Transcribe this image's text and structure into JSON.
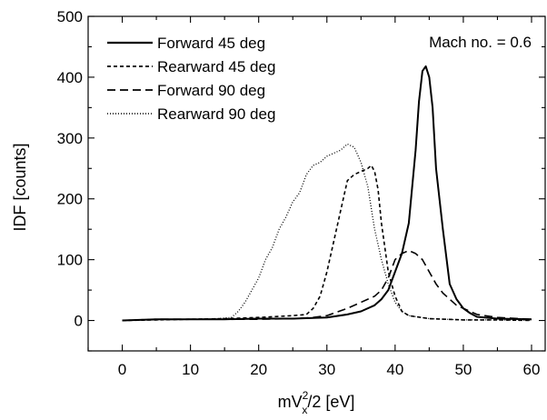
{
  "chart_data": {
    "type": "line",
    "title": "",
    "xlabel": "mV_x^2/2 [eV]",
    "xlabel_parts": {
      "base": "mV",
      "sub": "x",
      "sup": "2",
      "tail": "/2 [eV]"
    },
    "ylabel": "IDF [counts]",
    "xlim": [
      -5,
      62
    ],
    "ylim": [
      -50,
      500
    ],
    "xticks": [
      0,
      10,
      20,
      30,
      40,
      50,
      60
    ],
    "yticks": [
      0,
      100,
      200,
      300,
      400,
      500
    ],
    "grid": false,
    "legend_position": "top-left",
    "annotation": "Mach no. = 0.6",
    "series": [
      {
        "name": "Forward 45 deg",
        "style": "solid",
        "color": "#000000",
        "points": [
          [
            0,
            0
          ],
          [
            5,
            2
          ],
          [
            10,
            2
          ],
          [
            15,
            2
          ],
          [
            20,
            3
          ],
          [
            25,
            3
          ],
          [
            30,
            5
          ],
          [
            33,
            10
          ],
          [
            35,
            15
          ],
          [
            37,
            25
          ],
          [
            38,
            35
          ],
          [
            39,
            50
          ],
          [
            40,
            80
          ],
          [
            41,
            110
          ],
          [
            42,
            160
          ],
          [
            43,
            280
          ],
          [
            43.5,
            360
          ],
          [
            44,
            410
          ],
          [
            44.5,
            418
          ],
          [
            45,
            400
          ],
          [
            45.5,
            350
          ],
          [
            46,
            250
          ],
          [
            47,
            150
          ],
          [
            48,
            60
          ],
          [
            49,
            35
          ],
          [
            50,
            20
          ],
          [
            51,
            12
          ],
          [
            52,
            6
          ],
          [
            55,
            3
          ],
          [
            60,
            2
          ]
        ]
      },
      {
        "name": "Rearward 45 deg",
        "style": "short-dash",
        "color": "#000000",
        "points": [
          [
            0,
            0
          ],
          [
            5,
            1
          ],
          [
            10,
            2
          ],
          [
            15,
            3
          ],
          [
            20,
            5
          ],
          [
            25,
            8
          ],
          [
            27,
            10
          ],
          [
            28,
            20
          ],
          [
            29,
            40
          ],
          [
            30,
            80
          ],
          [
            31,
            130
          ],
          [
            32,
            180
          ],
          [
            33,
            230
          ],
          [
            34,
            240
          ],
          [
            35,
            245
          ],
          [
            36,
            250
          ],
          [
            36.5,
            255
          ],
          [
            37,
            245
          ],
          [
            37.5,
            215
          ],
          [
            38,
            160
          ],
          [
            39,
            80
          ],
          [
            40,
            40
          ],
          [
            41,
            15
          ],
          [
            42,
            8
          ],
          [
            45,
            3
          ],
          [
            50,
            1
          ],
          [
            55,
            1
          ],
          [
            60,
            0
          ]
        ]
      },
      {
        "name": "Forward 90 deg",
        "style": "long-dash",
        "color": "#000000",
        "points": [
          [
            0,
            0
          ],
          [
            5,
            2
          ],
          [
            10,
            2
          ],
          [
            15,
            2
          ],
          [
            20,
            2
          ],
          [
            25,
            3
          ],
          [
            28,
            5
          ],
          [
            30,
            8
          ],
          [
            33,
            20
          ],
          [
            35,
            30
          ],
          [
            37,
            40
          ],
          [
            38,
            50
          ],
          [
            39,
            70
          ],
          [
            40,
            100
          ],
          [
            41,
            110
          ],
          [
            42,
            115
          ],
          [
            43,
            110
          ],
          [
            44,
            100
          ],
          [
            45,
            80
          ],
          [
            46,
            60
          ],
          [
            47,
            45
          ],
          [
            48,
            35
          ],
          [
            49,
            25
          ],
          [
            50,
            20
          ],
          [
            51,
            15
          ],
          [
            52,
            10
          ],
          [
            55,
            5
          ],
          [
            60,
            2
          ]
        ]
      },
      {
        "name": "Rearward 90 deg",
        "style": "dotted",
        "color": "#000000",
        "points": [
          [
            0,
            0
          ],
          [
            5,
            1
          ],
          [
            10,
            2
          ],
          [
            14,
            3
          ],
          [
            16,
            5
          ],
          [
            17,
            15
          ],
          [
            18,
            30
          ],
          [
            19,
            50
          ],
          [
            20,
            70
          ],
          [
            21,
            100
          ],
          [
            22,
            120
          ],
          [
            23,
            150
          ],
          [
            24,
            170
          ],
          [
            25,
            195
          ],
          [
            26,
            210
          ],
          [
            27,
            240
          ],
          [
            28,
            255
          ],
          [
            29,
            260
          ],
          [
            30,
            270
          ],
          [
            31,
            275
          ],
          [
            32,
            280
          ],
          [
            33,
            290
          ],
          [
            34,
            285
          ],
          [
            35,
            260
          ],
          [
            36,
            220
          ],
          [
            37,
            150
          ],
          [
            38,
            100
          ],
          [
            39,
            60
          ],
          [
            40,
            30
          ],
          [
            41,
            15
          ],
          [
            42,
            8
          ],
          [
            45,
            3
          ],
          [
            50,
            1
          ],
          [
            55,
            1
          ],
          [
            60,
            0
          ]
        ]
      }
    ]
  }
}
